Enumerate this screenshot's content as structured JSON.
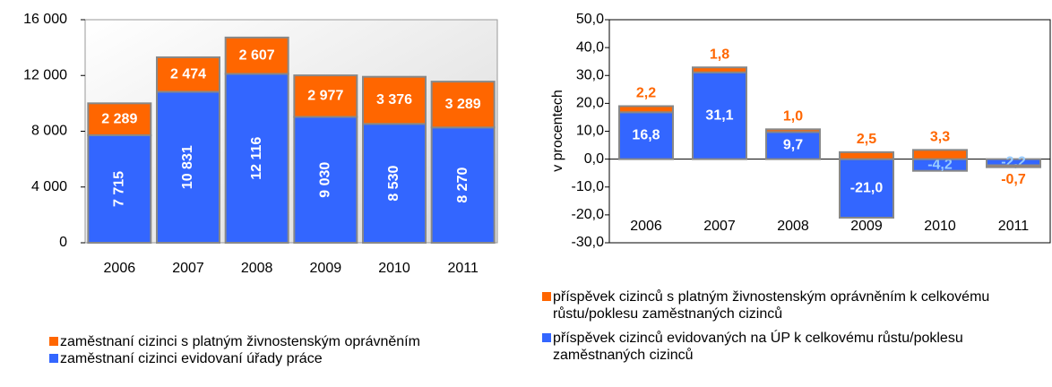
{
  "chart_data": [
    {
      "type": "bar",
      "stacked": true,
      "categories": [
        "2006",
        "2007",
        "2008",
        "2009",
        "2010",
        "2011"
      ],
      "series": [
        {
          "name": "zaměstnaní cizinci evidovaní úřady práce",
          "color": "#3366ff",
          "values": [
            7715,
            10831,
            12116,
            9030,
            8530,
            8270
          ],
          "value_labels": [
            "7 715",
            "10 831",
            "12 116",
            "9 030",
            "8 530",
            "8 270"
          ]
        },
        {
          "name": "zaměstnaní cizinci s platným živnostenským oprávněním",
          "color": "#ff6600",
          "values": [
            2289,
            2474,
            2607,
            2977,
            3376,
            3289
          ],
          "value_labels": [
            "2 289",
            "2 474",
            "2 607",
            "2 977",
            "3 376",
            "3 289"
          ]
        }
      ],
      "ylim": [
        0,
        16000
      ],
      "yticks": [
        0,
        {
          "value": 4000,
          "label": "4 000"
        },
        {
          "value": 8000,
          "label": "8 000"
        },
        {
          "value": 12000,
          "label": "12 000"
        },
        {
          "value": 16000,
          "label": "16 000"
        }
      ],
      "grid": false
    },
    {
      "type": "bar",
      "stacked": true,
      "ylabel": "v procentech",
      "categories": [
        "2006",
        "2007",
        "2008",
        "2009",
        "2010",
        "2011"
      ],
      "series": [
        {
          "name": "příspěvek cizinců evidovaných na ÚP k celkovému růstu/poklesu zaměstnaných cizinců",
          "color": "#3366ff",
          "values": [
            16.8,
            31.1,
            9.7,
            -21.0,
            -4.2,
            -2.2
          ],
          "value_labels": [
            "16,8",
            "31,1",
            "9,7",
            "-21,0",
            "-4,2",
            "-2,2"
          ]
        },
        {
          "name": "příspěvek cizinců s platným živnostenským oprávněním k celkovému růstu/poklesu zaměstnaných cizinců",
          "color": "#ff6600",
          "values": [
            2.2,
            1.8,
            1.0,
            2.5,
            3.3,
            -0.7
          ],
          "value_labels": [
            "2,2",
            "1,8",
            "1,0",
            "2,5",
            "3,3",
            "-0,7"
          ]
        }
      ],
      "ylim": [
        -30,
        50
      ],
      "yticks": [
        {
          "value": -30,
          "label": "-30,0"
        },
        {
          "value": -20,
          "label": "-20,0"
        },
        {
          "value": -10,
          "label": "-10,0"
        },
        {
          "value": 0,
          "label": "0,0"
        },
        {
          "value": 10,
          "label": "10,0"
        },
        {
          "value": 20,
          "label": "20,0"
        },
        {
          "value": 30,
          "label": "30,0"
        },
        {
          "value": 40,
          "label": "40,0"
        },
        {
          "value": 50,
          "label": "50,0"
        }
      ],
      "grid": false
    }
  ]
}
